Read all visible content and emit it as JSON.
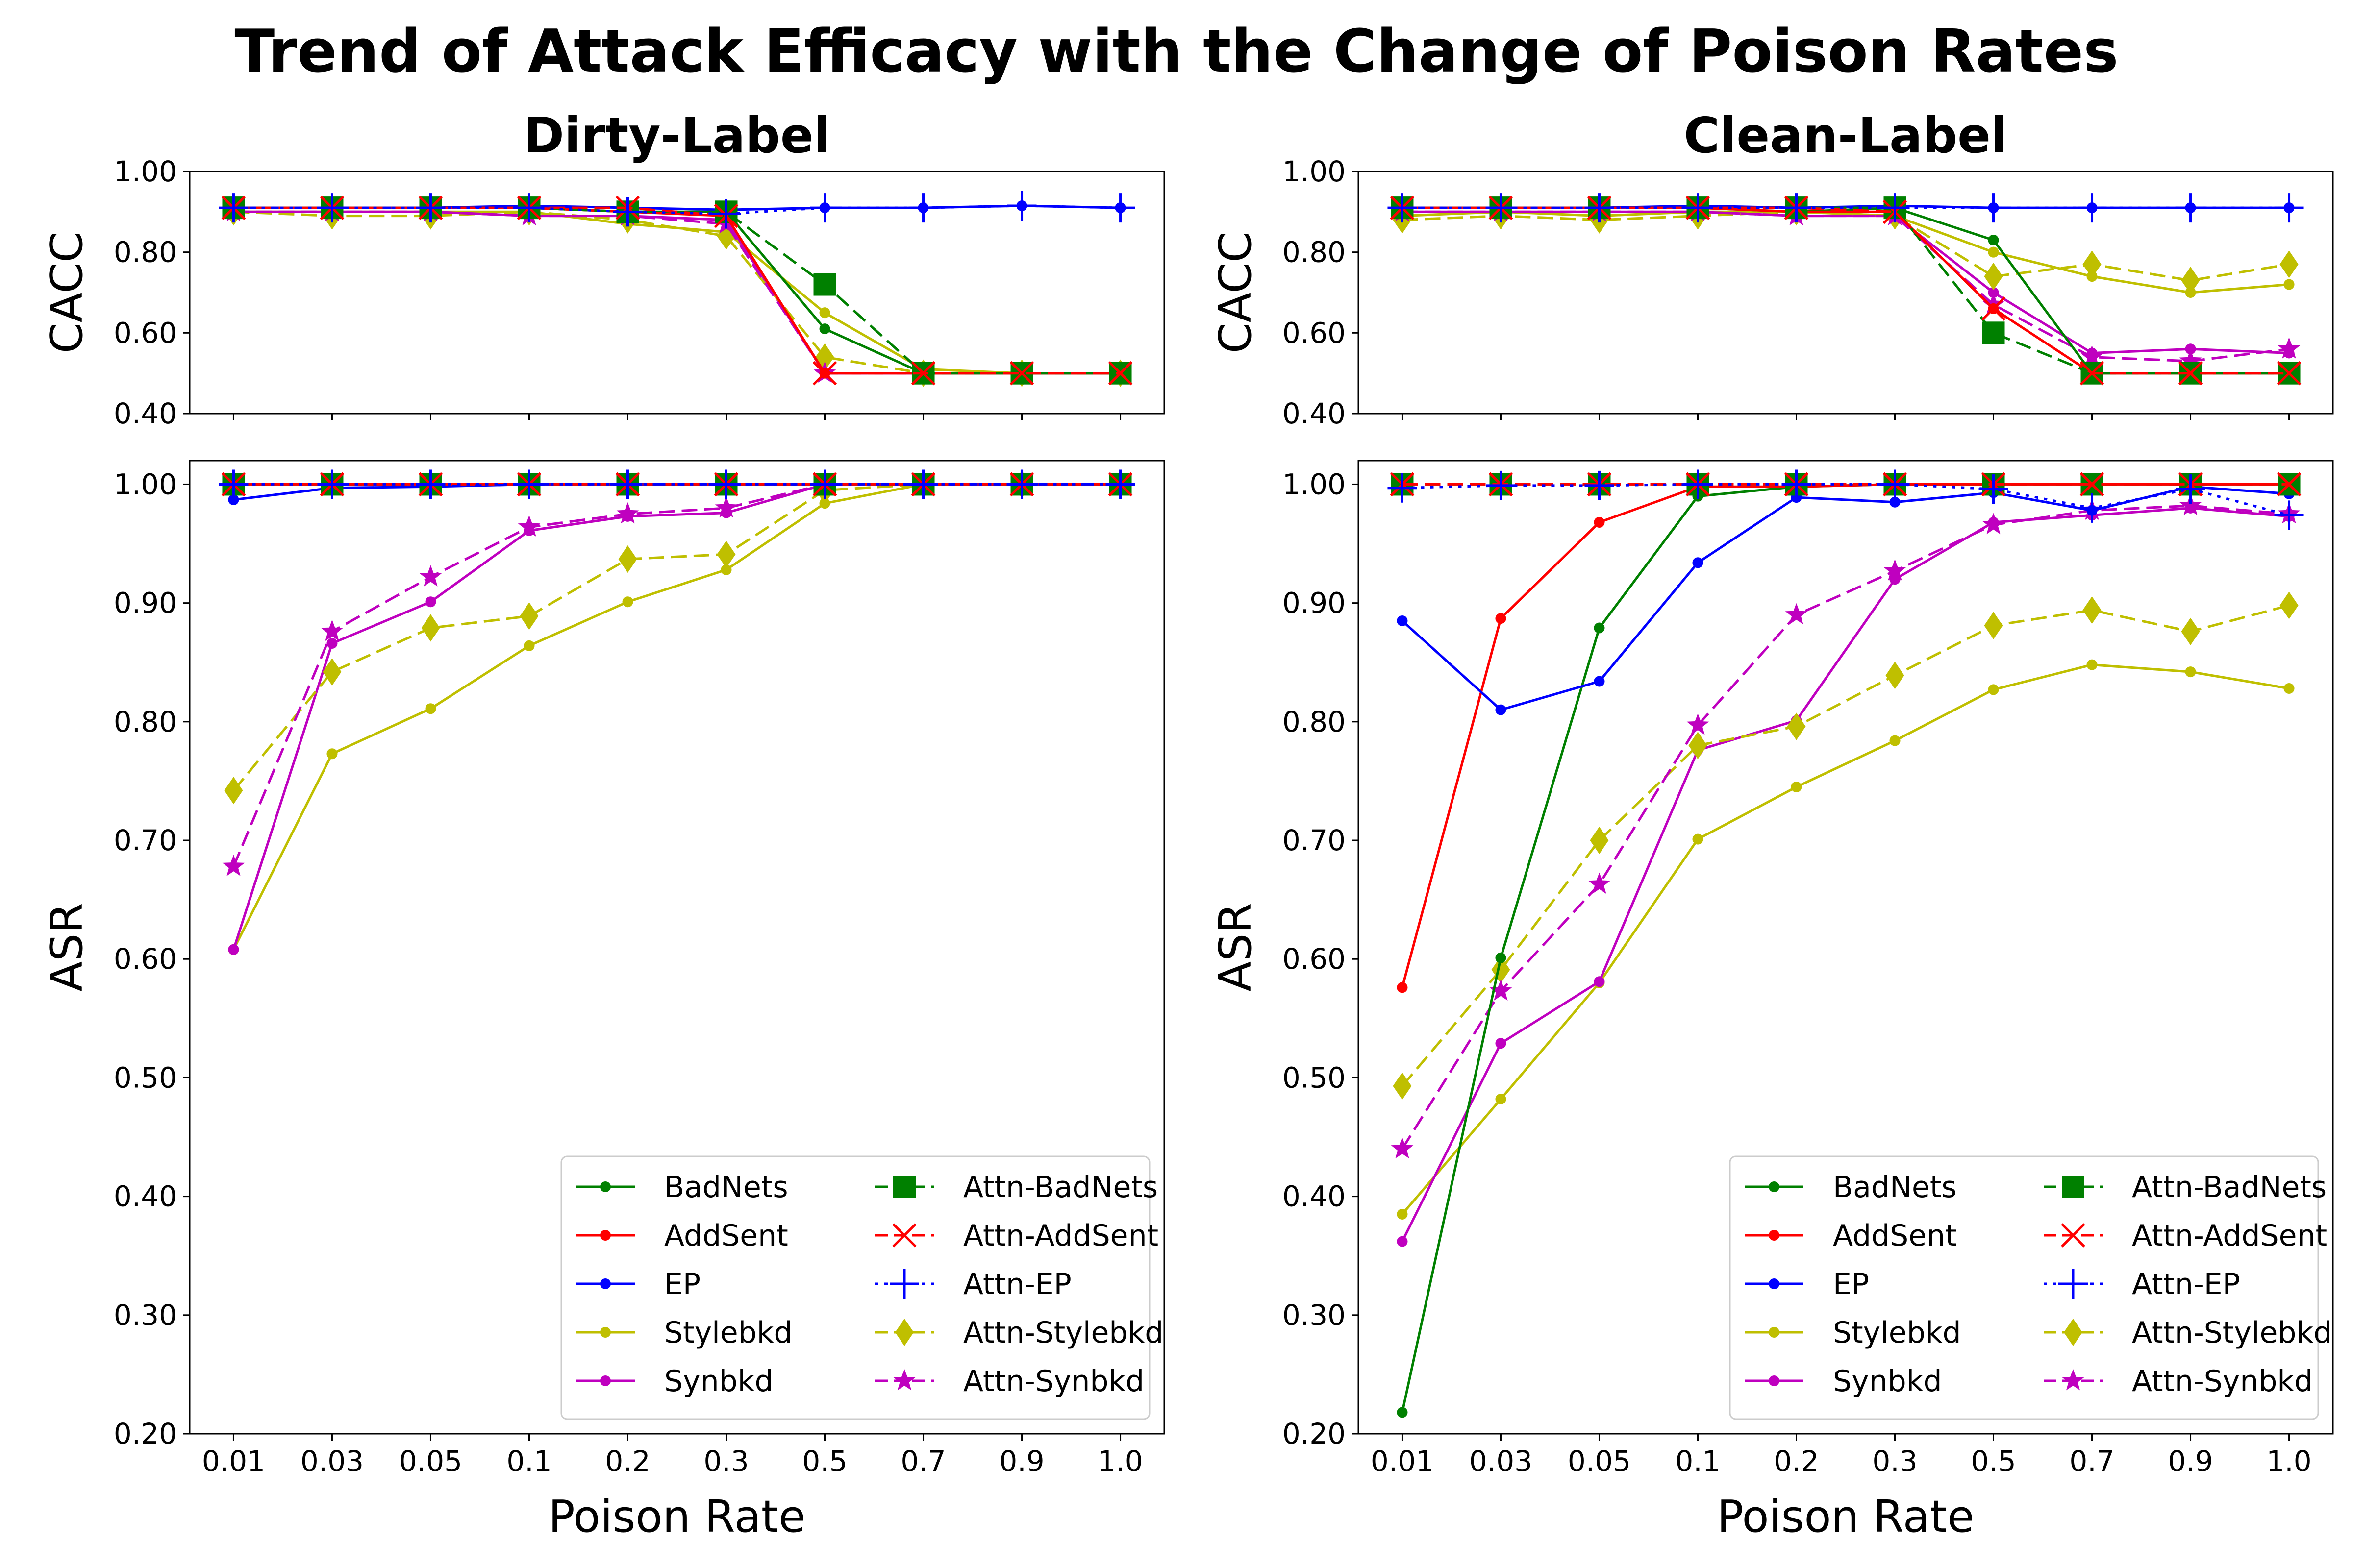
{
  "figure": {
    "suptitle": "Trend of Attack Efficacy with the Change of Poison Rates"
  },
  "chart_data": {
    "type": "line",
    "x_categories": [
      "0.01",
      "0.03",
      "0.05",
      "0.1",
      "0.2",
      "0.3",
      "0.5",
      "0.7",
      "0.9",
      "1.0"
    ],
    "panels": [
      {
        "id": "dirty",
        "title": "Dirty-Label",
        "subplots": [
          {
            "id": "cacc",
            "ylabel": "CACC",
            "xlabel": "",
            "ylim": [
              0.4,
              1.0
            ],
            "yticks": [
              "0.40",
              "0.60",
              "0.80",
              "1.00"
            ],
            "ytick_values": [
              0.4,
              0.6,
              0.8,
              1.0
            ],
            "series": [
              {
                "name": "BadNets",
                "values": [
                  0.91,
                  0.91,
                  0.91,
                  0.91,
                  0.9,
                  0.9,
                  0.61,
                  0.5,
                  0.5,
                  0.5
                ]
              },
              {
                "name": "AddSent",
                "values": [
                  0.91,
                  0.91,
                  0.91,
                  0.91,
                  0.9,
                  0.89,
                  0.5,
                  0.5,
                  0.5,
                  0.5
                ]
              },
              {
                "name": "EP",
                "values": [
                  0.91,
                  0.91,
                  0.91,
                  0.915,
                  0.91,
                  0.905,
                  0.91,
                  0.91,
                  0.915,
                  0.91
                ]
              },
              {
                "name": "Stylebkd",
                "values": [
                  0.9,
                  0.9,
                  0.9,
                  0.9,
                  0.87,
                  0.85,
                  0.65,
                  0.51,
                  0.5,
                  0.5
                ]
              },
              {
                "name": "Synbkd",
                "values": [
                  0.9,
                  0.9,
                  0.9,
                  0.89,
                  0.89,
                  0.88,
                  0.5,
                  0.5,
                  0.5,
                  0.5
                ]
              },
              {
                "name": "Attn-BadNets",
                "values": [
                  0.91,
                  0.91,
                  0.91,
                  0.91,
                  0.9,
                  0.9,
                  0.72,
                  0.5,
                  0.5,
                  0.5
                ]
              },
              {
                "name": "Attn-AddSent",
                "values": [
                  0.91,
                  0.91,
                  0.91,
                  0.91,
                  0.91,
                  0.89,
                  0.5,
                  0.5,
                  0.5,
                  0.5
                ]
              },
              {
                "name": "Attn-EP",
                "values": [
                  0.91,
                  0.91,
                  0.91,
                  0.91,
                  0.9,
                  0.895,
                  0.91,
                  0.91,
                  0.915,
                  0.91
                ]
              },
              {
                "name": "Attn-Stylebkd",
                "values": [
                  0.9,
                  0.89,
                  0.89,
                  0.9,
                  0.88,
                  0.84,
                  0.54,
                  0.5,
                  0.5,
                  0.5
                ]
              },
              {
                "name": "Attn-Synbkd",
                "values": [
                  0.9,
                  0.9,
                  0.9,
                  0.89,
                  0.89,
                  0.87,
                  0.5,
                  0.5,
                  0.5,
                  0.5
                ]
              }
            ]
          },
          {
            "id": "asr",
            "ylabel": "ASR",
            "xlabel": "Poison Rate",
            "ylim": [
              0.2,
              1.02
            ],
            "yticks": [
              "0.20",
              "0.30",
              "0.40",
              "0.50",
              "0.60",
              "0.70",
              "0.80",
              "0.90",
              "1.00"
            ],
            "ytick_values": [
              0.2,
              0.3,
              0.4,
              0.5,
              0.6,
              0.7,
              0.8,
              0.9,
              1.0
            ],
            "legend_loc": "lower right",
            "series": [
              {
                "name": "BadNets",
                "values": [
                  1.0,
                  1.0,
                  1.0,
                  1.0,
                  1.0,
                  1.0,
                  1.0,
                  1.0,
                  1.0,
                  1.0
                ]
              },
              {
                "name": "AddSent",
                "values": [
                  1.0,
                  1.0,
                  1.0,
                  1.0,
                  1.0,
                  1.0,
                  1.0,
                  1.0,
                  1.0,
                  1.0
                ]
              },
              {
                "name": "EP",
                "values": [
                  0.987,
                  0.997,
                  0.998,
                  1.0,
                  1.0,
                  1.0,
                  1.0,
                  1.0,
                  1.0,
                  1.0
                ]
              },
              {
                "name": "Stylebkd",
                "values": [
                  0.608,
                  0.773,
                  0.811,
                  0.864,
                  0.901,
                  0.928,
                  0.984,
                  1.0,
                  1.0,
                  1.0
                ]
              },
              {
                "name": "Synbkd",
                "values": [
                  0.608,
                  0.866,
                  0.901,
                  0.961,
                  0.973,
                  0.976,
                  1.0,
                  1.0,
                  1.0,
                  1.0
                ]
              },
              {
                "name": "Attn-BadNets",
                "values": [
                  1.0,
                  1.0,
                  1.0,
                  1.0,
                  1.0,
                  1.0,
                  1.0,
                  1.0,
                  1.0,
                  1.0
                ]
              },
              {
                "name": "Attn-AddSent",
                "values": [
                  1.0,
                  1.0,
                  1.0,
                  1.0,
                  1.0,
                  1.0,
                  1.0,
                  1.0,
                  1.0,
                  1.0
                ]
              },
              {
                "name": "Attn-EP",
                "values": [
                  1.0,
                  1.0,
                  1.0,
                  1.0,
                  1.0,
                  1.0,
                  1.0,
                  1.0,
                  1.0,
                  1.0
                ]
              },
              {
                "name": "Attn-Stylebkd",
                "values": [
                  0.742,
                  0.842,
                  0.879,
                  0.889,
                  0.937,
                  0.941,
                  0.995,
                  1.0,
                  1.0,
                  1.0
                ]
              },
              {
                "name": "Attn-Synbkd",
                "values": [
                  0.678,
                  0.876,
                  0.922,
                  0.964,
                  0.975,
                  0.98,
                  1.0,
                  1.0,
                  1.0,
                  1.0
                ]
              }
            ]
          }
        ]
      },
      {
        "id": "clean",
        "title": "Clean-Label",
        "subplots": [
          {
            "id": "cacc",
            "ylabel": "CACC",
            "xlabel": "",
            "ylim": [
              0.4,
              1.0
            ],
            "yticks": [
              "0.40",
              "0.60",
              "0.80",
              "1.00"
            ],
            "ytick_values": [
              0.4,
              0.6,
              0.8,
              1.0
            ],
            "series": [
              {
                "name": "BadNets",
                "values": [
                  0.91,
                  0.91,
                  0.91,
                  0.91,
                  0.9,
                  0.91,
                  0.83,
                  0.5,
                  0.5,
                  0.5
                ]
              },
              {
                "name": "AddSent",
                "values": [
                  0.91,
                  0.91,
                  0.91,
                  0.91,
                  0.9,
                  0.9,
                  0.66,
                  0.5,
                  0.5,
                  0.5
                ]
              },
              {
                "name": "EP",
                "values": [
                  0.91,
                  0.91,
                  0.91,
                  0.915,
                  0.91,
                  0.915,
                  0.91,
                  0.91,
                  0.91,
                  0.91
                ]
              },
              {
                "name": "Stylebkd",
                "values": [
                  0.89,
                  0.9,
                  0.89,
                  0.9,
                  0.9,
                  0.89,
                  0.8,
                  0.74,
                  0.7,
                  0.72
                ]
              },
              {
                "name": "Synbkd",
                "values": [
                  0.9,
                  0.9,
                  0.9,
                  0.9,
                  0.89,
                  0.89,
                  0.7,
                  0.55,
                  0.56,
                  0.55
                ]
              },
              {
                "name": "Attn-BadNets",
                "values": [
                  0.91,
                  0.91,
                  0.91,
                  0.91,
                  0.91,
                  0.91,
                  0.6,
                  0.5,
                  0.5,
                  0.5
                ]
              },
              {
                "name": "Attn-AddSent",
                "values": [
                  0.91,
                  0.91,
                  0.91,
                  0.91,
                  0.91,
                  0.9,
                  0.66,
                  0.5,
                  0.5,
                  0.5
                ]
              },
              {
                "name": "Attn-EP",
                "values": [
                  0.91,
                  0.91,
                  0.91,
                  0.91,
                  0.91,
                  0.91,
                  0.91,
                  0.91,
                  0.91,
                  0.91
                ]
              },
              {
                "name": "Attn-Stylebkd",
                "values": [
                  0.88,
                  0.89,
                  0.88,
                  0.89,
                  0.9,
                  0.89,
                  0.74,
                  0.77,
                  0.73,
                  0.77
                ]
              },
              {
                "name": "Attn-Synbkd",
                "values": [
                  0.9,
                  0.9,
                  0.9,
                  0.9,
                  0.89,
                  0.89,
                  0.67,
                  0.54,
                  0.53,
                  0.56
                ]
              }
            ]
          },
          {
            "id": "asr",
            "ylabel": "ASR",
            "xlabel": "Poison Rate",
            "ylim": [
              0.2,
              1.02
            ],
            "yticks": [
              "0.20",
              "0.30",
              "0.40",
              "0.50",
              "0.60",
              "0.70",
              "0.80",
              "0.90",
              "1.00"
            ],
            "ytick_values": [
              0.2,
              0.3,
              0.4,
              0.5,
              0.6,
              0.7,
              0.8,
              0.9,
              1.0
            ],
            "legend_loc": "lower right",
            "series": [
              {
                "name": "BadNets",
                "values": [
                  0.218,
                  0.601,
                  0.879,
                  0.99,
                  0.998,
                  1.0,
                  1.0,
                  1.0,
                  1.0,
                  1.0
                ]
              },
              {
                "name": "AddSent",
                "values": [
                  0.576,
                  0.887,
                  0.968,
                  0.998,
                  0.998,
                  1.0,
                  1.0,
                  1.0,
                  1.0,
                  1.0
                ]
              },
              {
                "name": "EP",
                "values": [
                  0.885,
                  0.81,
                  0.834,
                  0.934,
                  0.989,
                  0.985,
                  0.993,
                  0.978,
                  0.998,
                  0.992
                ]
              },
              {
                "name": "Stylebkd",
                "values": [
                  0.385,
                  0.482,
                  0.58,
                  0.701,
                  0.745,
                  0.784,
                  0.827,
                  0.848,
                  0.842,
                  0.828
                ]
              },
              {
                "name": "Synbkd",
                "values": [
                  0.362,
                  0.529,
                  0.581,
                  0.776,
                  0.801,
                  0.92,
                  0.968,
                  0.974,
                  0.98,
                  0.973
                ]
              },
              {
                "name": "Attn-BadNets",
                "values": [
                  1.0,
                  1.0,
                  1.0,
                  1.0,
                  1.0,
                  1.0,
                  1.0,
                  1.0,
                  1.0,
                  1.0
                ]
              },
              {
                "name": "Attn-AddSent",
                "values": [
                  1.0,
                  1.0,
                  1.0,
                  1.0,
                  1.0,
                  1.0,
                  1.0,
                  1.0,
                  1.0,
                  1.0
                ]
              },
              {
                "name": "Attn-EP",
                "values": [
                  0.997,
                  0.999,
                  0.999,
                  1.0,
                  1.0,
                  1.0,
                  0.996,
                  0.98,
                  0.996,
                  0.974
                ]
              },
              {
                "name": "Attn-Stylebkd",
                "values": [
                  0.493,
                  0.591,
                  0.7,
                  0.78,
                  0.796,
                  0.839,
                  0.881,
                  0.894,
                  0.876,
                  0.898
                ]
              },
              {
                "name": "Attn-Synbkd",
                "values": [
                  0.44,
                  0.573,
                  0.663,
                  0.797,
                  0.89,
                  0.927,
                  0.966,
                  0.978,
                  0.982,
                  0.975
                ]
              }
            ]
          }
        ]
      }
    ],
    "legend_entries": [
      "BadNets",
      "AddSent",
      "EP",
      "Stylebkd",
      "Synbkd",
      "Attn-BadNets",
      "Attn-AddSent",
      "Attn-EP",
      "Attn-Stylebkd",
      "Attn-Synbkd"
    ]
  },
  "styles": {
    "BadNets": {
      "color": "#008000",
      "dash": "solid",
      "marker": "dot"
    },
    "AddSent": {
      "color": "#ff0000",
      "dash": "solid",
      "marker": "dot"
    },
    "EP": {
      "color": "#0000ff",
      "dash": "solid",
      "marker": "dot"
    },
    "Stylebkd": {
      "color": "#bfbf00",
      "dash": "solid",
      "marker": "dot"
    },
    "Synbkd": {
      "color": "#bf00bf",
      "dash": "solid",
      "marker": "dot"
    },
    "Attn-BadNets": {
      "color": "#008000",
      "dash": "dashed",
      "marker": "square"
    },
    "Attn-AddSent": {
      "color": "#ff0000",
      "dash": "dashed",
      "marker": "x"
    },
    "Attn-EP": {
      "color": "#0000ff",
      "dash": "dotted",
      "marker": "plus"
    },
    "Attn-Stylebkd": {
      "color": "#bfbf00",
      "dash": "dashed",
      "marker": "diamond"
    },
    "Attn-Synbkd": {
      "color": "#bf00bf",
      "dash": "dashed",
      "marker": "star"
    }
  }
}
